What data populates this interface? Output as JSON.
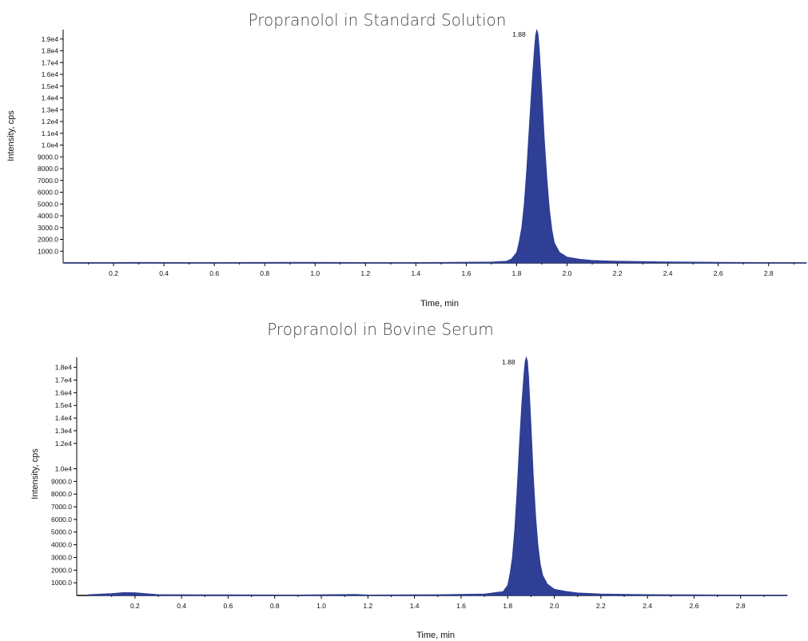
{
  "chart_data": [
    {
      "type": "area",
      "title": "Propranolol in Standard Solution",
      "xlabel": "Time, min",
      "ylabel": "Intensity, cps",
      "xlim": [
        0,
        2.95
      ],
      "ylim": [
        0,
        19800
      ],
      "x_ticks": [
        "0.2",
        "0.4",
        "0.6",
        "0.8",
        "1.0",
        "1.2",
        "1.4",
        "1.6",
        "1.8",
        "2.0",
        "2.2",
        "2.4",
        "2.6",
        "2.8"
      ],
      "y_ticks": [
        "1000.0",
        "2000.0",
        "3000.0",
        "4000.0",
        "5000.0",
        "6000.0",
        "7000.0",
        "8000.0",
        "9000.0",
        "1.0e4",
        "1.1e4",
        "1.2e4",
        "1.3e4",
        "1.4e4",
        "1.5e4",
        "1.6e4",
        "1.7e4",
        "1.8e4",
        "1.9e4"
      ],
      "peak_label": "1.88",
      "color": "#2e3f95",
      "series": [
        {
          "x": [
            0.0,
            0.3,
            0.6,
            0.9,
            1.2,
            1.5,
            1.7,
            1.76,
            1.78,
            1.8,
            1.81,
            1.82,
            1.83,
            1.84,
            1.85,
            1.86,
            1.87,
            1.875,
            1.88,
            1.885,
            1.89,
            1.9,
            1.91,
            1.92,
            1.93,
            1.94,
            1.95,
            1.97,
            2.0,
            2.05,
            2.1,
            2.2,
            2.4,
            2.6,
            2.8,
            2.95
          ],
          "y": [
            40,
            50,
            40,
            60,
            40,
            50,
            80,
            150,
            350,
            900,
            1800,
            3000,
            5000,
            8000,
            11500,
            15000,
            18000,
            19300,
            19800,
            19400,
            18200,
            14500,
            10500,
            7200,
            4600,
            2800,
            1700,
            900,
            500,
            320,
            220,
            150,
            90,
            60,
            40,
            30
          ]
        }
      ]
    },
    {
      "type": "area",
      "title": "Propranolol in Bovine Serum",
      "xlabel": "Time, min",
      "ylabel": "Intensity, cps",
      "xlim": [
        -0.05,
        3.0
      ],
      "ylim": [
        0,
        18800
      ],
      "x_ticks": [
        "0.2",
        "0.4",
        "0.6",
        "0.8",
        "1.0",
        "1.2",
        "1.4",
        "1.6",
        "1.8",
        "2.0",
        "2.2",
        "2.4",
        "2.6",
        "2.8"
      ],
      "y_ticks": [
        "1000.0",
        "2000.0",
        "3000.0",
        "4000.0",
        "5000.0",
        "6000.0",
        "7000.0",
        "8000.0",
        "9000.0",
        "1.0e4",
        "1.2e4",
        "1.3e4",
        "1.4e4",
        "1.5e4",
        "1.6e4",
        "1.7e4",
        "1.8e4"
      ],
      "peak_label": "1.88",
      "color": "#2e3f95",
      "series": [
        {
          "x": [
            0.0,
            0.1,
            0.15,
            0.2,
            0.25,
            0.3,
            0.6,
            0.9,
            1.15,
            1.2,
            1.5,
            1.7,
            1.78,
            1.8,
            1.81,
            1.82,
            1.83,
            1.84,
            1.85,
            1.86,
            1.87,
            1.875,
            1.88,
            1.885,
            1.89,
            1.9,
            1.91,
            1.92,
            1.93,
            1.94,
            1.95,
            1.97,
            2.0,
            2.05,
            2.1,
            2.2,
            2.4,
            2.6,
            2.8,
            3.0
          ],
          "y": [
            60,
            150,
            230,
            220,
            140,
            70,
            50,
            40,
            90,
            40,
            60,
            120,
            300,
            800,
            1700,
            3000,
            5200,
            8200,
            11800,
            15000,
            17500,
            18500,
            18800,
            18500,
            17200,
            13500,
            9500,
            6300,
            4000,
            2500,
            1600,
            900,
            500,
            320,
            200,
            120,
            70,
            50,
            40,
            30
          ]
        }
      ]
    }
  ]
}
